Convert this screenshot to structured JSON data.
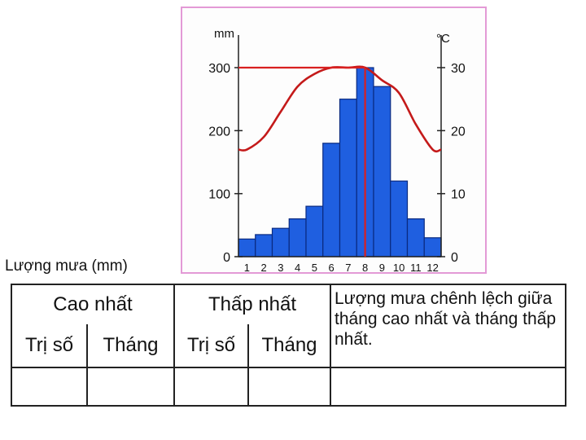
{
  "rain_label": "Lượng mưa (mm)",
  "table": {
    "highest": "Cao nhất",
    "lowest": "Thấp nhất",
    "value": "Trị số",
    "month": "Tháng",
    "difference": "Lượng mưa chênh lệch giữa tháng cao nhất và tháng thấp nhất.",
    "answers": [
      "",
      "",
      "",
      "",
      ""
    ]
  },
  "chart_data": {
    "type": "bar",
    "categories": [
      "1",
      "2",
      "3",
      "4",
      "5",
      "6",
      "7",
      "8",
      "9",
      "10",
      "11",
      "12"
    ],
    "series": [
      {
        "values": [
          28,
          35,
          45,
          60,
          80,
          180,
          250,
          300,
          270,
          120,
          60,
          30
        ]
      },
      {
        "values": [
          17,
          19,
          23,
          27,
          29,
          30,
          30,
          30,
          28,
          26,
          21,
          17
        ]
      }
    ],
    "left_axis": {
      "unit": "mm",
      "ticks": [
        "0",
        "100",
        "200",
        "300"
      ],
      "ylim": [
        0,
        300
      ]
    },
    "right_axis": {
      "unit": "°C",
      "ticks": [
        "0",
        "10",
        "20",
        "30"
      ],
      "ylim": [
        0,
        30
      ]
    },
    "markers": {
      "max_month": "8",
      "max_value": 300
    },
    "colors": {
      "bar": "#1f5fe0",
      "bar_edge": "#0a2a80",
      "temperature": "#c41a1a",
      "marker": "#d92020"
    }
  }
}
